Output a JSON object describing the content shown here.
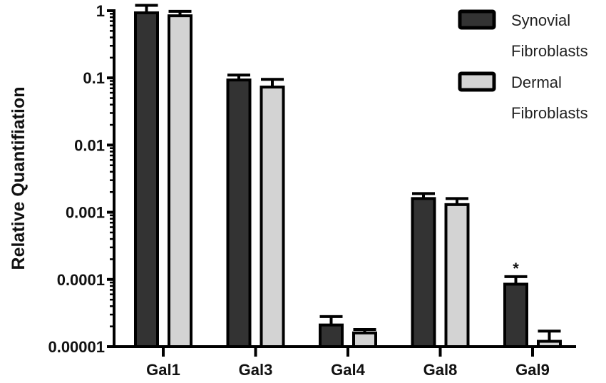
{
  "chart_data": {
    "type": "bar",
    "title": "",
    "xlabel": "",
    "ylabel": "Relative Quantifiation",
    "yscale": "log",
    "ylim": [
      1e-05,
      1
    ],
    "yticks": [
      "1",
      "0.1",
      "0.01",
      "0.001",
      "0.0001",
      "0.00001"
    ],
    "categories": [
      "Gal1",
      "Gal3",
      "Gal4",
      "Gal8",
      "Gal9"
    ],
    "series": [
      {
        "name": "Synovial Fibroblasts",
        "color": "#333333",
        "values": [
          0.93,
          0.093,
          2.1e-05,
          0.0016,
          8.5e-05
        ],
        "error_upper": [
          1.2,
          0.11,
          2.8e-05,
          0.0019,
          0.00011
        ]
      },
      {
        "name": "Dermal Fibroblasts",
        "color": "#d3d3d3",
        "values": [
          0.84,
          0.073,
          1.6e-05,
          0.0013,
          1.2e-05
        ],
        "error_upper": [
          0.98,
          0.095,
          1.8e-05,
          0.0016,
          1.7e-05
        ]
      }
    ],
    "annotations": [
      {
        "category": "Gal9",
        "series": "Synovial Fibroblasts",
        "text": "*"
      }
    ],
    "legend": {
      "position": "top-right",
      "entries": [
        {
          "line1": "Synovial",
          "line2": "Fibroblasts",
          "color": "#333333"
        },
        {
          "line1": "Dermal",
          "line2": "Fibroblasts",
          "color": "#d3d3d3"
        }
      ]
    },
    "grid": false
  }
}
